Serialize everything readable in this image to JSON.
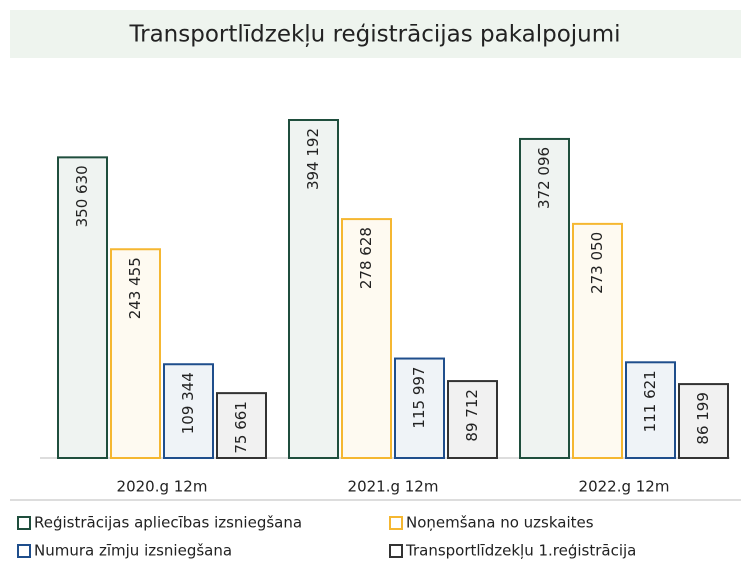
{
  "chart_data": {
    "type": "bar",
    "title": "Transportlīdzekļu reģistrācijas pakalpojumi",
    "categories": [
      "2020.g 12m",
      "2021.g 12m",
      "2022.g 12m"
    ],
    "series": [
      {
        "name": "Reģistrācijas apliecības izsniegšana",
        "color": "#1f4e3d",
        "values": [
          350630,
          394192,
          372096
        ],
        "value_labels": [
          "350 630",
          "394 192",
          "372 096"
        ]
      },
      {
        "name": "Noņemšana no uzskaites",
        "color": "#f5b731",
        "values": [
          243455,
          278628,
          273050
        ],
        "value_labels": [
          "243 455",
          "278 628",
          "273 050"
        ]
      },
      {
        "name": "Numura zīmju izsniegšana",
        "color": "#1f4e8c",
        "values": [
          109344,
          115997,
          111621
        ],
        "value_labels": [
          "109 344",
          "115 997",
          "111 621"
        ]
      },
      {
        "name": "Transportlīdzekļu 1.reģistrācija",
        "color": "#333333",
        "values": [
          75661,
          89712,
          86199
        ],
        "value_labels": [
          "75 661",
          "89 712",
          "86 199"
        ]
      }
    ]
  }
}
